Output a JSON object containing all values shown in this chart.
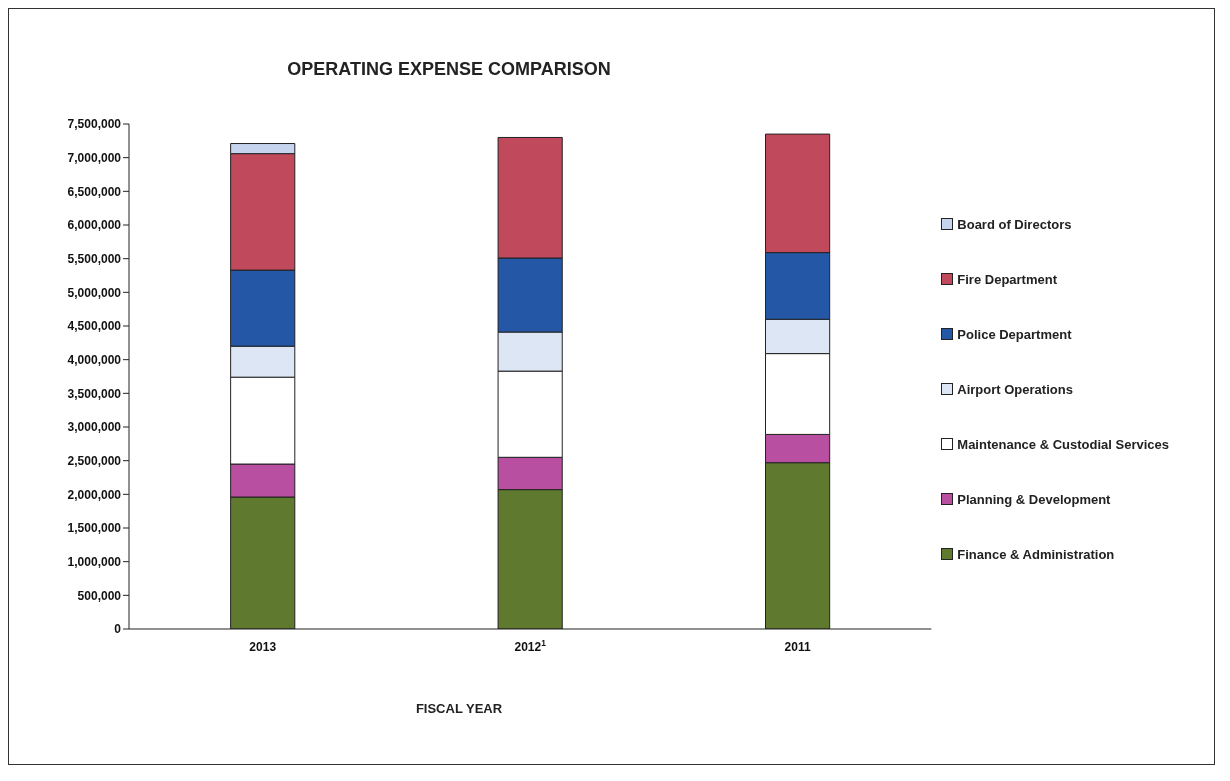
{
  "chart_data": {
    "type": "bar",
    "title": "OPERATING EXPENSE COMPARISON",
    "xlabel": "FISCAL YEAR",
    "categories": [
      "2013",
      "2012$^{1}$",
      "2011"
    ],
    "stacked": true,
    "legend": "right",
    "grid": false,
    "ylim": [
      0,
      7500000
    ],
    "yticks": [
      {
        "value": 0,
        "label": "0"
      },
      {
        "value": 500000,
        "label": "500,000"
      },
      {
        "value": 1000000,
        "label": "1,000,000"
      },
      {
        "value": 1500000,
        "label": "1,500,000"
      },
      {
        "value": 2000000,
        "label": "2,000,000"
      },
      {
        "value": 2500000,
        "label": "2,500,000"
      },
      {
        "value": 3000000,
        "label": "3,000,000"
      },
      {
        "value": 3500000,
        "label": "3,500,000"
      },
      {
        "value": 4000000,
        "label": "4,000,000"
      },
      {
        "value": 4500000,
        "label": "4,500,000"
      },
      {
        "value": 5000000,
        "label": "5,000,000"
      },
      {
        "value": 5500000,
        "label": "5,500,000"
      },
      {
        "value": 6000000,
        "label": "6,000,000"
      },
      {
        "value": 6500000,
        "label": "6,500,000"
      },
      {
        "value": 7000000,
        "label": "7,000,000"
      },
      {
        "value": 7500000,
        "label": "7,500,000"
      }
    ],
    "series": [
      {
        "name": "Finance & Administration",
        "color": "#5f7a2e",
        "values": [
          1960000,
          2070000,
          2470000
        ]
      },
      {
        "name": "Planning & Development",
        "color": "#b94fa0",
        "values": [
          490000,
          480000,
          420000
        ]
      },
      {
        "name": "Maintenance & Custodial Services",
        "color": "#ffffff",
        "values": [
          1290000,
          1280000,
          1200000
        ]
      },
      {
        "name": "Airport Operations",
        "color": "#dce6f4",
        "values": [
          460000,
          580000,
          510000
        ]
      },
      {
        "name": "Police Department",
        "color": "#2458a6",
        "values": [
          1130000,
          1100000,
          990000
        ]
      },
      {
        "name": "Fire Department",
        "color": "#c0495c",
        "values": [
          1730000,
          1790000,
          1760000
        ]
      },
      {
        "name": "Board of Directors",
        "color": "#c6d4ee",
        "values": [
          150000,
          null,
          0
        ]
      }
    ]
  }
}
